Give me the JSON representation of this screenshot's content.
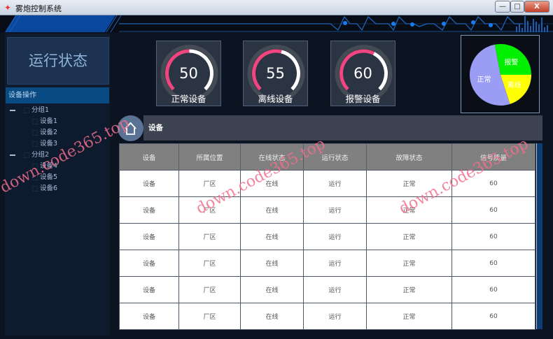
{
  "window": {
    "title": "雾炮控制系统",
    "minimize": "—",
    "maximize": "□",
    "close": "X"
  },
  "left": {
    "status_title": "运行状态",
    "tree_header": "设备操作",
    "groups": [
      {
        "label": "分组1",
        "items": [
          "设备1",
          "设备2",
          "设备3"
        ]
      },
      {
        "label": "分组2",
        "items": [
          "设备4",
          "设备5",
          "设备6"
        ]
      }
    ]
  },
  "gauges": [
    {
      "value": 50,
      "max": 100,
      "label": "正常设备"
    },
    {
      "value": 55,
      "max": 100,
      "label": "离线设备"
    },
    {
      "value": 60,
      "max": 100,
      "label": "报警设备"
    }
  ],
  "colors": {
    "gauge_fill": "#f0457f",
    "gauge_rest": "#ffffff",
    "gauge_track": "#444b55"
  },
  "chart_data": {
    "type": "pie",
    "slices": [
      {
        "label": "正常",
        "value": 52,
        "color": "#9b9df5"
      },
      {
        "label": "报警",
        "value": 28,
        "color": "#00f000"
      },
      {
        "label": "离线",
        "value": 20,
        "color": "#ffff00"
      }
    ]
  },
  "section": {
    "title": "设备"
  },
  "table": {
    "headers": [
      "设备",
      "所属位置",
      "在线状态",
      "运行状态",
      "故障状态",
      "信号质量"
    ],
    "rows": [
      [
        "设备",
        "厂区",
        "在线",
        "运行",
        "正常",
        "60"
      ],
      [
        "设备",
        "厂区",
        "在线",
        "运行",
        "正常",
        "60"
      ],
      [
        "设备",
        "厂区",
        "在线",
        "运行",
        "正常",
        "60"
      ],
      [
        "设备",
        "厂区",
        "在线",
        "运行",
        "正常",
        "60"
      ],
      [
        "设备",
        "厂区",
        "在线",
        "运行",
        "正常",
        "60"
      ],
      [
        "设备",
        "厂区",
        "在线",
        "运行",
        "正常",
        "60"
      ]
    ]
  },
  "watermark": "down.code365.top"
}
